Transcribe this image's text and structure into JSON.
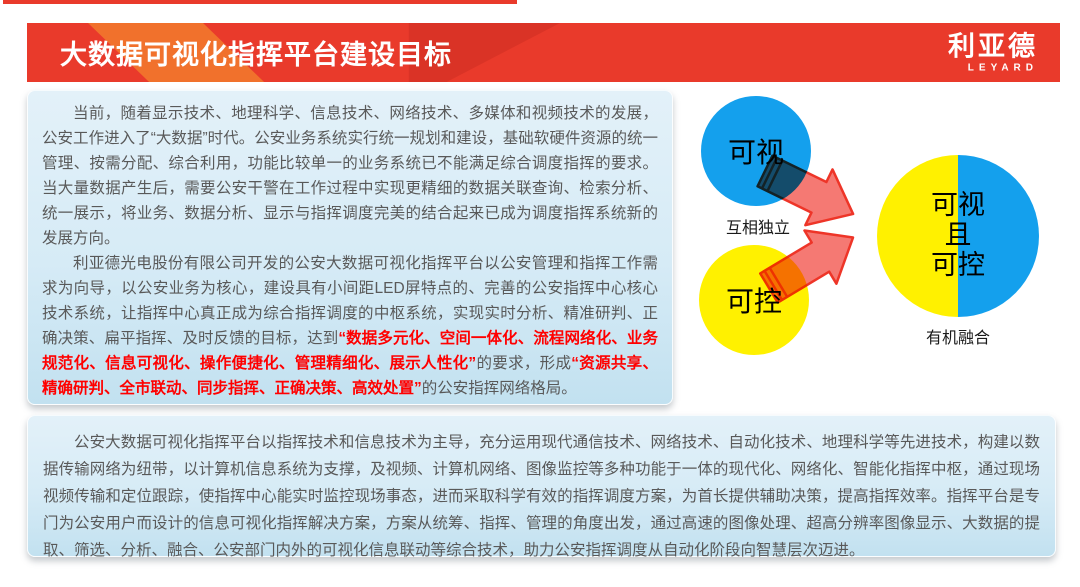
{
  "header": {
    "title": "大数据可视化指挥平台建设目标",
    "logo": {
      "name": "利亚德",
      "sub": "LEYARD"
    }
  },
  "colors": {
    "banner_red": "#E93A2B",
    "banner_orange": "#F1712C",
    "panel_blue": "#D6EBF6",
    "body_text_gray": "#595959",
    "highlight_red": "#FF0000",
    "circle_blue": "#14A0ED",
    "circle_yellow": "#FFF100",
    "arrow_red": "#EE3528"
  },
  "left_panel": {
    "paragraphs": [
      {
        "segments": [
          {
            "style": "normal",
            "text": "当前，随着显示技术、地理科学、信息技术、网络技术、多媒体和视频技术的发展，公安工作进入了“大数据”时代。公安业务系统实行统一规划和建设，基础软硬件资源的统一管理、按需分配、综合利用，功能比较单一的业务系统已不能满足综合调度指挥的要求。当大量数据产生后，需要公安干警在工作过程中实现更精细的数据关联查询、检索分析、统一展示，将业务、数据分析、显示与指挥调度完美的结合起来已成为调度指挥系统新的发展方向。"
          }
        ]
      },
      {
        "segments": [
          {
            "style": "normal",
            "text": "利亚德光电股份有限公司开发的公安大数据可视化指挥平台以公安管理和指挥工作需求为向导，以公安业务为核心，建设具有小间距LED屏特点的、完善的公安指挥中心核心技术系统，让指挥中心真正成为综合指挥调度的中枢系统，实现实时分析、精准研判、正确决策、扁平指挥、及时反馈的目标，达到"
          },
          {
            "style": "red",
            "text": "“数据多元化、空间一体化、流程网络化、业务规范化、信息可视化、操作便捷化、管理精细化、展示人性化”"
          },
          {
            "style": "normal",
            "text": "的要求，形成"
          },
          {
            "style": "red",
            "text": "“资源共享、精确研判、全市联动、同步指挥、正确决策、高效处置”"
          },
          {
            "style": "normal",
            "text": "的公安指挥网络格局。"
          }
        ]
      }
    ]
  },
  "diagram": {
    "circle_visual": {
      "label": "可视"
    },
    "circle_control": {
      "label": "可控"
    },
    "circle_merged": {
      "lines": [
        "可视",
        "且",
        "可控"
      ]
    },
    "caption_independent": "互相独立",
    "caption_merged": "有机融合"
  },
  "bottom_panel": {
    "paragraphs": [
      {
        "segments": [
          {
            "style": "normal",
            "text": "公安大数据可视化指挥平台以指挥技术和信息技术为主导，充分运用现代通信技术、网络技术、自动化技术、地理科学等先进技术，构建以数据传输网络为纽带，以计算机信息系统为支撑，及视频、计算机网络、图像监控等多种功能于一体的现代化、网络化、智能化指挥中枢，通过现场视频传输和定位跟踪，使指挥中心能实时监控现场事态，进而采取科学有效的指挥调度方案，为首长提供辅助决策，提高指挥效率。指挥平台是专门为公安用户而设计的信息可视化指挥解决方案，方案从统筹、指挥、管理的角度出发，通过高速的图像处理、超高分辨率图像显示、大数据的提取、筛选、分析、融合、公安部门内外的可视化信息联动等综合技术，助力公安指挥调度从自动化阶段向智慧层次迈进。"
          }
        ]
      }
    ]
  }
}
